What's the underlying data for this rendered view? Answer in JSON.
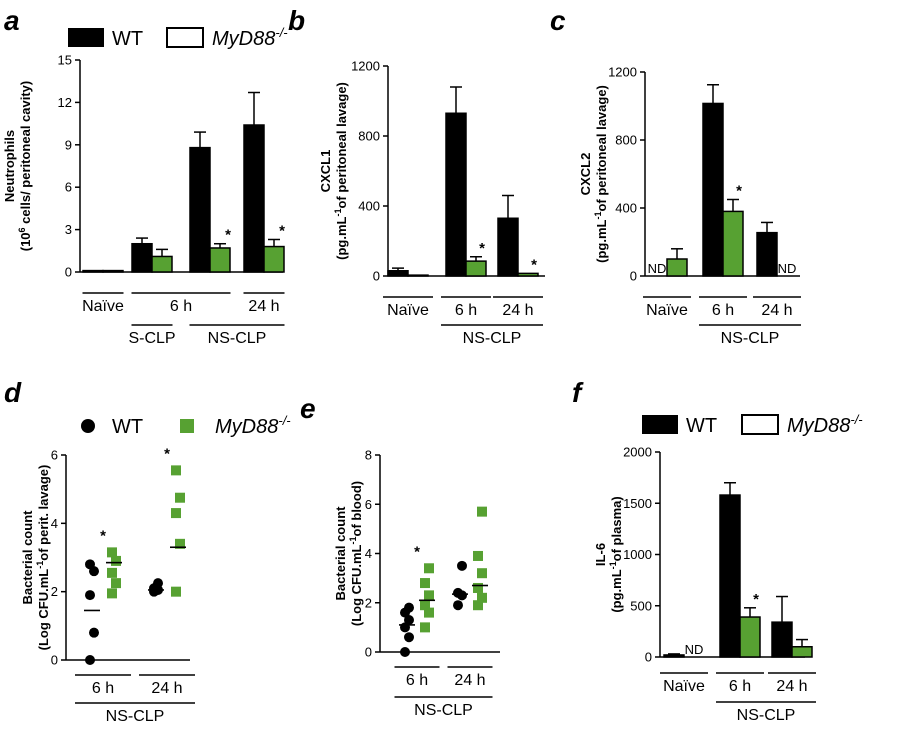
{
  "colors": {
    "wt": "#000000",
    "ko": "#57a132",
    "axis": "#000000"
  },
  "legend_top": {
    "wt": "WT",
    "ko": "MyD88",
    "ko_sup": "-/-"
  },
  "legend_d": {
    "wt": "WT",
    "ko": "MyD88",
    "ko_sup": "-/-"
  },
  "legend_f": {
    "wt": "WT",
    "ko": "MyD88",
    "ko_sup": "-/-"
  },
  "chart_data": [
    {
      "panel": "a",
      "type": "bar",
      "ylabel_line1": "Neutrophils",
      "ylabel_line2": "(10",
      "ylabel_sup": "6",
      "ylabel_line2_rest": " cells/ peritoneal cavity)",
      "ylim": [
        0,
        15
      ],
      "yticks": [
        0,
        3,
        6,
        9,
        12,
        15
      ],
      "ytick_labels": [
        "0",
        "3",
        "6",
        "9",
        "12",
        "15"
      ],
      "groups": [
        {
          "wt": 0.1,
          "wt_err": 0,
          "ko": 0.1,
          "ko_err": 0,
          "wt_star": false,
          "ko_star": false,
          "wt_nd": false,
          "ko_nd": false
        },
        {
          "wt": 2.0,
          "wt_err": 0.4,
          "ko": 1.1,
          "ko_err": 0.5,
          "wt_star": false,
          "ko_star": false,
          "wt_nd": false,
          "ko_nd": false
        },
        {
          "wt": 8.8,
          "wt_err": 1.1,
          "ko": 1.7,
          "ko_err": 0.3,
          "wt_star": false,
          "ko_star": true,
          "wt_nd": false,
          "ko_nd": false
        },
        {
          "wt": 10.4,
          "wt_err": 2.3,
          "ko": 1.8,
          "ko_err": 0.5,
          "wt_star": false,
          "ko_star": true,
          "wt_nd": false,
          "ko_nd": false
        }
      ],
      "labels": [
        {
          "text": "Naïve",
          "span": [
            0,
            0
          ],
          "level": 1
        },
        {
          "text": "6 h",
          "span": [
            1,
            2
          ],
          "level": 1
        },
        {
          "text": "24 h",
          "span": [
            3,
            3
          ],
          "level": 1
        },
        {
          "text": "S-CLP",
          "span": [
            1,
            1
          ],
          "level": 2
        },
        {
          "text": "NS-CLP",
          "span": [
            2,
            3
          ],
          "level": 2
        }
      ]
    },
    {
      "panel": "b",
      "type": "bar",
      "ylabel_line1": "CXCL1",
      "ylabel_line2": "(pg.mL",
      "ylabel_sup": "-1",
      "ylabel_line2_rest": "of peritoneal lavage)",
      "ylim": [
        0,
        1200
      ],
      "yticks": [
        0,
        400,
        800,
        1200
      ],
      "ytick_labels": [
        "0",
        "400",
        "800",
        "1200"
      ],
      "groups": [
        {
          "wt": 30,
          "wt_err": 15,
          "ko": 5,
          "ko_err": 0,
          "wt_star": false,
          "ko_star": false,
          "wt_nd": false,
          "ko_nd": false
        },
        {
          "wt": 930,
          "wt_err": 150,
          "ko": 85,
          "ko_err": 25,
          "wt_star": false,
          "ko_star": true,
          "wt_nd": false,
          "ko_nd": false
        },
        {
          "wt": 330,
          "wt_err": 130,
          "ko": 15,
          "ko_err": 0,
          "wt_star": false,
          "ko_star": true,
          "wt_nd": false,
          "ko_nd": false
        }
      ],
      "labels": [
        {
          "text": "Naïve",
          "span": [
            0,
            0
          ],
          "level": 1
        },
        {
          "text": "6 h",
          "span": [
            1,
            1
          ],
          "level": 1
        },
        {
          "text": "24 h",
          "span": [
            2,
            2
          ],
          "level": 1
        },
        {
          "text": "NS-CLP",
          "span": [
            1,
            2
          ],
          "level": 2
        }
      ]
    },
    {
      "panel": "c",
      "type": "bar",
      "ylabel_line1": "CXCL2",
      "ylabel_line2": "(pg.mL",
      "ylabel_sup": "-1",
      "ylabel_line2_rest": "of peritoneal lavage)",
      "ylim": [
        0,
        1200
      ],
      "yticks": [
        0,
        400,
        800,
        1200
      ],
      "ytick_labels": [
        "0",
        "400",
        "800",
        "1200"
      ],
      "groups": [
        {
          "wt": 0,
          "wt_err": 0,
          "ko": 100,
          "ko_err": 60,
          "wt_star": false,
          "ko_star": false,
          "wt_nd": true,
          "ko_nd": false
        },
        {
          "wt": 1015,
          "wt_err": 110,
          "ko": 380,
          "ko_err": 70,
          "wt_star": false,
          "ko_star": true,
          "wt_nd": false,
          "ko_nd": false
        },
        {
          "wt": 255,
          "wt_err": 60,
          "ko": 0,
          "ko_err": 0,
          "wt_star": false,
          "ko_star": false,
          "wt_nd": false,
          "ko_nd": true
        }
      ],
      "labels": [
        {
          "text": "Naïve",
          "span": [
            0,
            0
          ],
          "level": 1
        },
        {
          "text": "6 h",
          "span": [
            1,
            1
          ],
          "level": 1
        },
        {
          "text": "24 h",
          "span": [
            2,
            2
          ],
          "level": 1
        },
        {
          "text": "NS-CLP",
          "span": [
            1,
            2
          ],
          "level": 2
        }
      ]
    },
    {
      "panel": "d",
      "type": "scatter",
      "ylabel_line1": "Bacterial count",
      "ylabel_line2": "(Log CFU.mL",
      "ylabel_sup": "-1",
      "ylabel_line2_rest": "of perit. lavage)",
      "ylim": [
        0,
        6
      ],
      "yticks": [
        0,
        2,
        4,
        6
      ],
      "ytick_labels": [
        "0",
        "2",
        "4",
        "6"
      ],
      "groups": [
        {
          "wt": [
            0.0,
            0.8,
            1.9,
            2.6,
            2.8
          ],
          "wt_mean": 1.45,
          "ko": [
            1.95,
            2.25,
            2.55,
            2.9,
            3.15
          ],
          "ko_mean": 2.85,
          "star": true
        },
        {
          "wt": [
            2.0,
            2.05,
            2.1,
            2.25
          ],
          "wt_mean": 2.05,
          "ko": [
            2.0,
            3.4,
            4.3,
            4.75,
            5.55
          ],
          "ko_mean": 3.3,
          "star": true
        }
      ],
      "labels": [
        {
          "text": "6 h",
          "span": [
            0,
            0
          ],
          "level": 1
        },
        {
          "text": "24 h",
          "span": [
            1,
            1
          ],
          "level": 1
        },
        {
          "text": "NS-CLP",
          "span": [
            0,
            1
          ],
          "level": 2
        }
      ]
    },
    {
      "panel": "e",
      "type": "scatter",
      "ylabel_line1": "Bacterial count",
      "ylabel_line2": "(Log CFU.mL",
      "ylabel_sup": "-1",
      "ylabel_line2_rest": "of blood)",
      "ylim": [
        0,
        8
      ],
      "yticks": [
        0,
        2,
        4,
        6,
        8
      ],
      "ytick_labels": [
        "0",
        "2",
        "4",
        "6",
        "8"
      ],
      "groups": [
        {
          "wt": [
            0.0,
            0.6,
            1.0,
            1.3,
            1.6,
            1.8
          ],
          "wt_mean": 1.1,
          "ko": [
            1.0,
            1.6,
            1.9,
            2.3,
            2.8,
            3.4
          ],
          "ko_mean": 2.1,
          "star": true
        },
        {
          "wt": [
            1.9,
            2.3,
            2.4,
            3.5
          ],
          "wt_mean": 2.35,
          "ko": [
            1.9,
            2.2,
            2.6,
            3.2,
            3.9,
            5.7
          ],
          "ko_mean": 2.7,
          "star": false
        }
      ],
      "labels": [
        {
          "text": "6 h",
          "span": [
            0,
            0
          ],
          "level": 1
        },
        {
          "text": "24 h",
          "span": [
            1,
            1
          ],
          "level": 1
        },
        {
          "text": "NS-CLP",
          "span": [
            0,
            1
          ],
          "level": 2
        }
      ]
    },
    {
      "panel": "f",
      "type": "bar",
      "ylabel_line1": "IL-6",
      "ylabel_line2": "(pg.mL",
      "ylabel_sup": "-1",
      "ylabel_line2_rest": "of plasma)",
      "ylim": [
        0,
        2000
      ],
      "yticks": [
        0,
        500,
        1000,
        1500,
        2000
      ],
      "ytick_labels": [
        "0",
        "500",
        "1000",
        "1500",
        "2000"
      ],
      "groups": [
        {
          "wt": 20,
          "wt_err": 10,
          "ko": 0,
          "ko_err": 0,
          "wt_star": false,
          "ko_star": false,
          "wt_nd": false,
          "ko_nd": true
        },
        {
          "wt": 1580,
          "wt_err": 120,
          "ko": 390,
          "ko_err": 90,
          "wt_star": false,
          "ko_star": true,
          "wt_nd": false,
          "ko_nd": false
        },
        {
          "wt": 340,
          "wt_err": 250,
          "ko": 100,
          "ko_err": 70,
          "wt_star": false,
          "ko_star": false,
          "wt_nd": false,
          "ko_nd": false
        }
      ],
      "labels": [
        {
          "text": "Naïve",
          "span": [
            0,
            0
          ],
          "level": 1
        },
        {
          "text": "6 h",
          "span": [
            1,
            1
          ],
          "level": 1
        },
        {
          "text": "24 h",
          "span": [
            2,
            2
          ],
          "level": 1
        },
        {
          "text": "NS-CLP",
          "span": [
            1,
            2
          ],
          "level": 2
        }
      ]
    }
  ]
}
